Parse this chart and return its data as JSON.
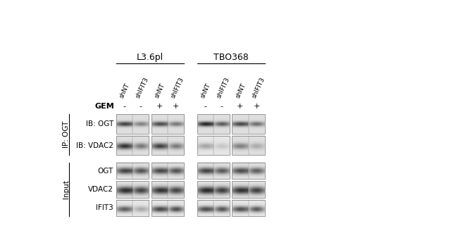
{
  "title_left": "L3.6pl",
  "title_right": "TBO368",
  "col_labels": [
    "shNT",
    "shIFIT3",
    "shNT",
    "shIFIT3",
    "shNT",
    "shIFIT3",
    "shNT",
    "shIFIT3"
  ],
  "gem_labels": [
    "-",
    "-",
    "+",
    "+",
    "-",
    "-",
    "+",
    "+"
  ],
  "row_labels_ip": [
    "IB: OGT",
    "IB: VDAC2"
  ],
  "row_labels_input": [
    "OGT",
    "VDAC2",
    "IFIT3"
  ],
  "left_label_ip": "IP: OGT",
  "left_label_input": "Input",
  "gem_label": "GEM",
  "bg_color": "#ffffff"
}
